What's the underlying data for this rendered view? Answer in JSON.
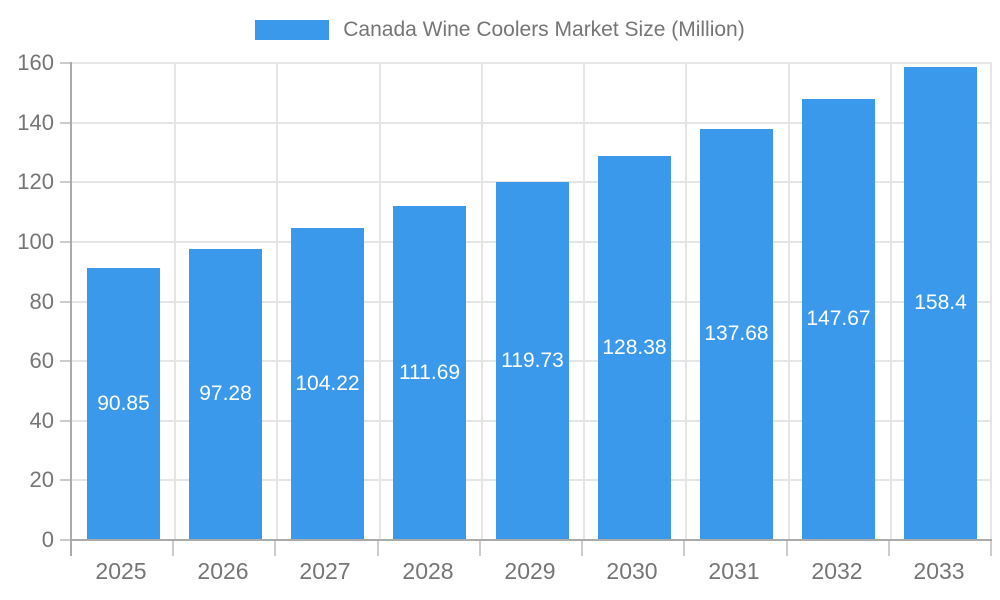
{
  "chart_data": {
    "type": "bar",
    "title": "Canada Wine Coolers Market Size (Million)",
    "legend_position": "top",
    "categories": [
      "2025",
      "2026",
      "2027",
      "2028",
      "2029",
      "2030",
      "2031",
      "2032",
      "2033"
    ],
    "values": [
      90.85,
      97.28,
      104.22,
      111.69,
      119.73,
      128.38,
      137.68,
      147.67,
      158.4
    ],
    "xlabel": "",
    "ylabel": "",
    "ylim": [
      0,
      160
    ],
    "yticks": [
      0,
      20,
      40,
      60,
      80,
      100,
      120,
      140,
      160
    ],
    "grid": true,
    "value_labels": "inside-center",
    "colors": {
      "bar": "#3b99ec",
      "grid": "#e5e5e5",
      "axis": "#aaaaaa",
      "tick": "#cccccc",
      "axis_text": "#757575",
      "value_text": "#ffffff",
      "background": "#ffffff"
    }
  }
}
